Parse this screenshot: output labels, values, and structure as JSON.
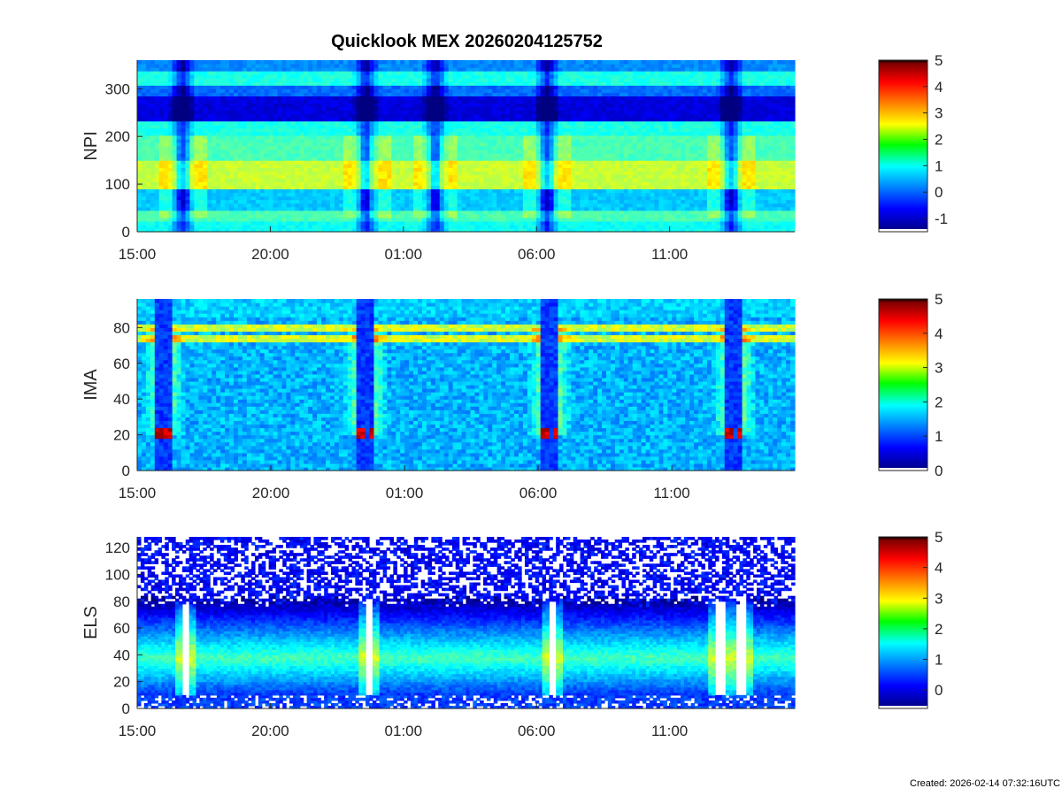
{
  "title": "Quicklook MEX 20260204125752",
  "footer": "Created: 2026-02-14 07:32:16UTC",
  "chart_data": [
    {
      "type": "heatmap",
      "panel": "NPI",
      "ylabel": "NPI",
      "xlabel": "",
      "x_ticks": [
        "15:00",
        "20:00",
        "01:00",
        "06:00",
        "11:00"
      ],
      "x_range_hours": [
        15.0,
        39.7
      ],
      "x_tick_hours": [
        15,
        20,
        25,
        30,
        35
      ],
      "ylim": [
        0,
        360
      ],
      "y_ticks": [
        0,
        100,
        200,
        300
      ],
      "colorbar": {
        "min": -1.5,
        "max": 5,
        "ticks": [
          -1,
          0,
          1,
          2,
          3,
          4,
          5
        ]
      },
      "bands": [
        {
          "y0": 0,
          "y1": 20,
          "base": 1.0
        },
        {
          "y0": 20,
          "y1": 45,
          "base": 1.4
        },
        {
          "y0": 45,
          "y1": 90,
          "base": 0.6
        },
        {
          "y0": 90,
          "y1": 150,
          "base": 2.2
        },
        {
          "y0": 150,
          "y1": 200,
          "base": 1.4
        },
        {
          "y0": 200,
          "y1": 230,
          "base": 1.1
        },
        {
          "y0": 230,
          "y1": 285,
          "base": -0.9
        },
        {
          "y0": 285,
          "y1": 310,
          "base": 0.0
        },
        {
          "y0": 310,
          "y1": 335,
          "base": 1.1
        },
        {
          "y0": 335,
          "y1": 360,
          "base": 0.2
        }
      ],
      "events_hours": [
        16.7,
        23.6,
        26.2,
        30.4,
        37.3
      ]
    },
    {
      "type": "heatmap",
      "panel": "IMA",
      "ylabel": "IMA",
      "xlabel": "",
      "x_ticks": [
        "15:00",
        "20:00",
        "01:00",
        "06:00",
        "11:00"
      ],
      "x_range_hours": [
        15.0,
        39.6
      ],
      "x_tick_hours": [
        15,
        20,
        25,
        30,
        35
      ],
      "ylim": [
        0,
        96
      ],
      "y_ticks": [
        0,
        20,
        40,
        60,
        80
      ],
      "colorbar": {
        "min": 0,
        "max": 5,
        "ticks": [
          0,
          1,
          2,
          3,
          4,
          5
        ]
      },
      "upper_band_levels": [
        80,
        74
      ],
      "pericentre_intervals_hours": [
        [
          15.7,
          16.3
        ],
        [
          23.2,
          23.9
        ],
        [
          30.1,
          30.8
        ],
        [
          37.0,
          37.7
        ]
      ],
      "low_energy_peak_level": 21
    },
    {
      "type": "heatmap",
      "panel": "ELS",
      "ylabel": "ELS",
      "xlabel": "",
      "x_ticks": [
        "15:00",
        "20:00",
        "01:00",
        "06:00",
        "11:00"
      ],
      "x_range_hours": [
        15.0,
        39.7
      ],
      "x_tick_hours": [
        15,
        20,
        25,
        30,
        35
      ],
      "ylim": [
        0,
        128
      ],
      "y_ticks": [
        0,
        20,
        40,
        60,
        80,
        100,
        120
      ],
      "colorbar": {
        "min": -0.6,
        "max": 5,
        "ticks": [
          0,
          1,
          2,
          3,
          4,
          5
        ]
      },
      "peak_level": 38,
      "cutoff_level": 80,
      "events_hours": [
        16.8,
        23.7,
        30.6,
        36.9,
        37.7
      ]
    }
  ]
}
